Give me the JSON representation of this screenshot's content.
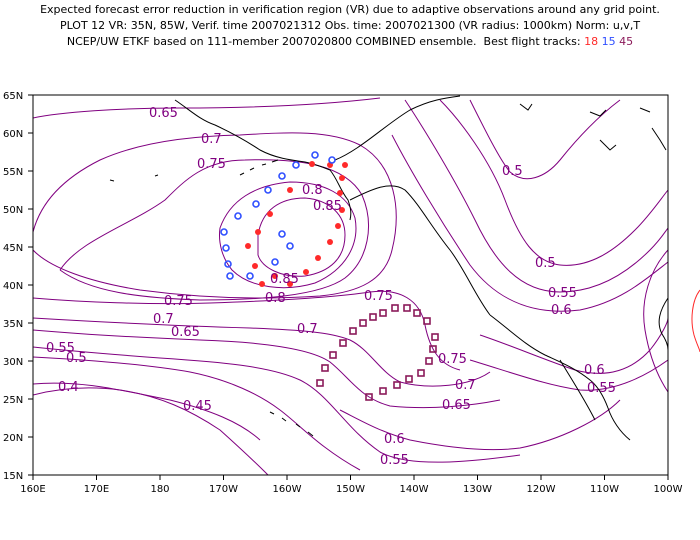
{
  "header": {
    "line1": "Expected forecast error reduction in verification region (VR) due to adaptive observations around any grid point.",
    "line2": "PLOT 12 VR: 35N, 85W, Verif. time 2007021312 Obs. time: 2007021300 (VR radius: 1000km) Norm: u,v,T",
    "line3_prefix": "NCEP/UW ETKF based on 111-member 2007020800 COMBINED ensemble.  Best flight tracks:",
    "track_red": "18",
    "track_blue": "15",
    "track_purple": "45"
  },
  "map": {
    "lat_labels": [
      "65N",
      "60N",
      "55N",
      "50N",
      "45N",
      "40N",
      "35N",
      "30N",
      "25N",
      "20N",
      "15N"
    ],
    "lon_labels": [
      "160E",
      "170E",
      "180",
      "170W",
      "160W",
      "150W",
      "140W",
      "130W",
      "120W",
      "110W",
      "100W"
    ],
    "contour_labels": [
      "0.65",
      "0.7",
      "0.75",
      "0.8",
      "0.85",
      "0.85",
      "0.8",
      "0.75",
      "0.7",
      "0.65",
      "0.55",
      "0.5",
      "0.4",
      "0.45",
      "0.75",
      "0.7",
      "0.75",
      "0.7",
      "0.65",
      "0.6",
      "0.55",
      "0.5",
      "0.5",
      "0.55",
      "0.6",
      "0.6",
      "0.55"
    ],
    "colors": {
      "contour": "#800080",
      "coast": "#000000",
      "track_red": "#ff2a2a",
      "track_blue": "#2f4fff",
      "track_purple": "#8b1a5a"
    },
    "icons": [
      "red-dot-marker",
      "blue-circle-marker",
      "purple-square-marker"
    ]
  }
}
